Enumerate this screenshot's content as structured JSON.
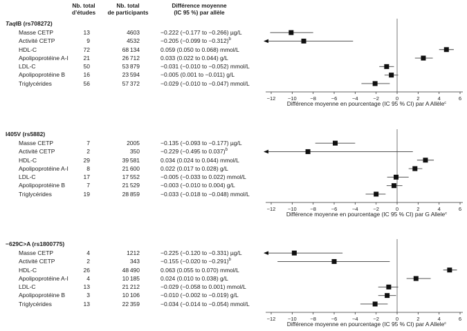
{
  "table": {
    "col_headers": {
      "studies": [
        "Nb. total",
        "d’études"
      ],
      "participants": [
        "Nb. total",
        "de participants"
      ],
      "difference": [
        "Différence moyenne",
        "(IC 95 %) par allèle"
      ]
    }
  },
  "chart_data": {
    "type": "forest",
    "axis": {
      "min": -12,
      "max": 6,
      "ticks": [
        -12,
        -10,
        -8,
        -6,
        -4,
        -2,
        0,
        2,
        4,
        6
      ],
      "zero_line": true,
      "units": "pourcentage"
    },
    "panels": [
      {
        "gene_italic": "Taq",
        "gene_rest": "IB (rs708272)",
        "xlabel": "Différence moyenne en pourcentage (IC 95 % CI) par A Allèle",
        "xlabel_sup": "c",
        "rows": [
          {
            "label": "Masse CETP",
            "studies": "13",
            "participants": "4603",
            "difference": "−0.222 (−0.177 to −0.266) µg/L",
            "sup": "",
            "pct": -10.1,
            "lo": -12.1,
            "hi": -8.0,
            "clip_lo": false
          },
          {
            "label": "Activité CETP",
            "studies": "9",
            "participants": "4532",
            "difference": "−0.205 (−0.099 to −0.312)",
            "sup": "b",
            "pct": -8.9,
            "lo": -12.6,
            "hi": -4.2,
            "clip_lo": true
          },
          {
            "label": "HDL-C",
            "studies": "72",
            "participants": "68 134",
            "difference": "0.059 (0.050 to 0.068) mmol/L",
            "sup": "",
            "pct": 4.7,
            "lo": 4.0,
            "hi": 5.4,
            "clip_lo": false
          },
          {
            "label": "Apolipoprotéine A-I",
            "studies": "21",
            "participants": "26 712",
            "difference": "0.033 (0.022 to 0.044) g/L",
            "sup": "",
            "pct": 2.5,
            "lo": 1.7,
            "hi": 3.4,
            "clip_lo": false
          },
          {
            "label": "LDL-C",
            "studies": "50",
            "participants": "53 879",
            "difference": "−0.031 (−0.010 to −0.052) mmol/L",
            "sup": "",
            "pct": -1.0,
            "lo": -1.7,
            "hi": -0.3,
            "clip_lo": false
          },
          {
            "label": "Apolipoprotéine B",
            "studies": "16",
            "participants": "23 594",
            "difference": "−0.005 (0.001 to −0.011) g/L",
            "sup": "",
            "pct": -0.55,
            "lo": -1.2,
            "hi": 0.1,
            "clip_lo": false
          },
          {
            "label": "Triglycérides",
            "studies": "56",
            "participants": "57 372",
            "difference": "−0.029 (−0.010 to −0.047) mmol/L",
            "sup": "",
            "pct": -2.1,
            "lo": -3.4,
            "hi": -0.7,
            "clip_lo": false
          }
        ]
      },
      {
        "gene_italic": "",
        "gene_rest": "I405V (rs5882)",
        "xlabel": "Différence moyenne en pourcentage (IC 95 % CI) par G Allele",
        "xlabel_sup": "c",
        "rows": [
          {
            "label": "Masse CETP",
            "studies": "7",
            "participants": "2005",
            "difference": "−0.135 (−0.093 to −0.177) µg/L",
            "sup": "",
            "pct": -5.9,
            "lo": -7.8,
            "hi": -4.0,
            "clip_lo": false
          },
          {
            "label": "Activité CETP",
            "studies": "2",
            "participants": "350",
            "difference": "−0.229 (−0.495 to 0.037)",
            "sup": "b",
            "pct": -8.5,
            "lo": -12.6,
            "hi": 1.5,
            "clip_lo": true
          },
          {
            "label": "HDL-C",
            "studies": "29",
            "participants": "39 581",
            "difference": "0.034 (0.024 to 0.044) mmol/L",
            "sup": "",
            "pct": 2.7,
            "lo": 1.9,
            "hi": 3.5,
            "clip_lo": false
          },
          {
            "label": "Apolipoprotéine A-I",
            "studies": "8",
            "participants": "21 600",
            "difference": "0.022 (0.017 to 0.028) g/L",
            "sup": "",
            "pct": 1.7,
            "lo": 1.1,
            "hi": 2.4,
            "clip_lo": false
          },
          {
            "label": "LDL-C",
            "studies": "17",
            "participants": "17 552",
            "difference": "−0.005 (−0.033 to 0.022) mmol/L",
            "sup": "",
            "pct": -0.1,
            "lo": -0.95,
            "hi": 1.1,
            "clip_lo": false
          },
          {
            "label": "Apolipoprotéine B",
            "studies": "7",
            "participants": "21 529",
            "difference": "−0.003 (−0.010 to 0.004) g/L",
            "sup": "",
            "pct": -0.3,
            "lo": -1.0,
            "hi": 0.5,
            "clip_lo": false
          },
          {
            "label": "Triglycérides",
            "studies": "19",
            "participants": "28 859",
            "difference": "−0.033 (−0.018 to −0.048) mmol/L",
            "sup": "",
            "pct": -2.0,
            "lo": -3.0,
            "hi": -1.1,
            "clip_lo": false
          }
        ]
      },
      {
        "gene_italic": "",
        "gene_rest": "−629C>A (rs1800775)",
        "xlabel": "Différence moyenne en pourcentage (IC 95 % CI) par A Allele",
        "xlabel_sup": "c",
        "rows": [
          {
            "label": "Masse CETP",
            "studies": "4",
            "participants": "1212",
            "difference": "−0.225 (−0.120 to −0.331) µg/L",
            "sup": "",
            "pct": -9.8,
            "lo": -12.6,
            "hi": -5.2,
            "clip_lo": true
          },
          {
            "label": "Activité CETP",
            "studies": "2",
            "participants": "343",
            "difference": "−0.155 (−0.020 to −0.291)",
            "sup": "b",
            "pct": -6.0,
            "lo": -11.4,
            "hi": -0.7,
            "clip_lo": false
          },
          {
            "label": "HDL-C",
            "studies": "26",
            "participants": "48 490",
            "difference": "0.063 (0.055 to 0.070) mmol/L",
            "sup": "",
            "pct": 5.0,
            "lo": 4.4,
            "hi": 5.7,
            "clip_lo": false
          },
          {
            "label": "Apolipoprotéine A-I",
            "studies": "4",
            "participants": "10 185",
            "difference": "0.024 (0.010 to 0.038) g/L",
            "sup": "",
            "pct": 1.8,
            "lo": 0.9,
            "hi": 3.2,
            "clip_lo": false
          },
          {
            "label": "LDL-C",
            "studies": "13",
            "participants": "21 212",
            "difference": "−0.029 (−0.058 to 0.001) mmol/L",
            "sup": "",
            "pct": -0.8,
            "lo": -1.8,
            "hi": 0.1,
            "clip_lo": false
          },
          {
            "label": "Apolipoprotéine B",
            "studies": "3",
            "participants": "10 106",
            "difference": "−0.010 (−0.002 to −0.019) g/L",
            "sup": "",
            "pct": -0.95,
            "lo": -1.8,
            "hi": -0.1,
            "clip_lo": false
          },
          {
            "label": "Triglycérides",
            "studies": "13",
            "participants": "22 359",
            "difference": "−0.034 (−0.014 to −0.054) mmol/L",
            "sup": "",
            "pct": -2.1,
            "lo": -3.5,
            "hi": -0.9,
            "clip_lo": false
          }
        ]
      }
    ]
  }
}
